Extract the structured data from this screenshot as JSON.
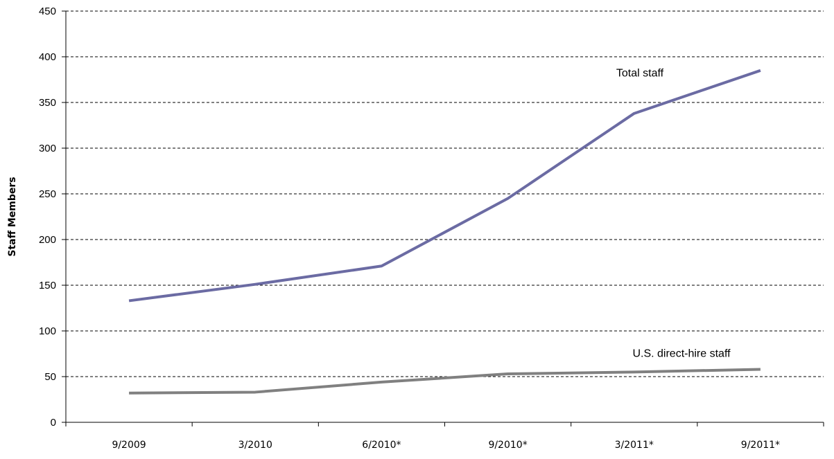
{
  "chart_data": {
    "type": "line",
    "title": "",
    "xlabel": "",
    "ylabel": "Staff Members",
    "categories": [
      "9/2009",
      "3/2010",
      "6/2010*",
      "9/2010*",
      "3/2011*",
      "9/2011*"
    ],
    "ylim": [
      0,
      450
    ],
    "yticks": [
      0,
      50,
      100,
      150,
      200,
      250,
      300,
      350,
      400,
      450
    ],
    "grid": "horizontal dashed",
    "legend": "none (inline labels)",
    "series": [
      {
        "name": "Total staff",
        "values": [
          133,
          151,
          171,
          245,
          338,
          385
        ],
        "color": "#6b6ba3"
      },
      {
        "name": "U.S. direct-hire staff",
        "values": [
          32,
          33,
          44,
          53,
          55,
          58
        ],
        "color": "#808080"
      }
    ]
  }
}
